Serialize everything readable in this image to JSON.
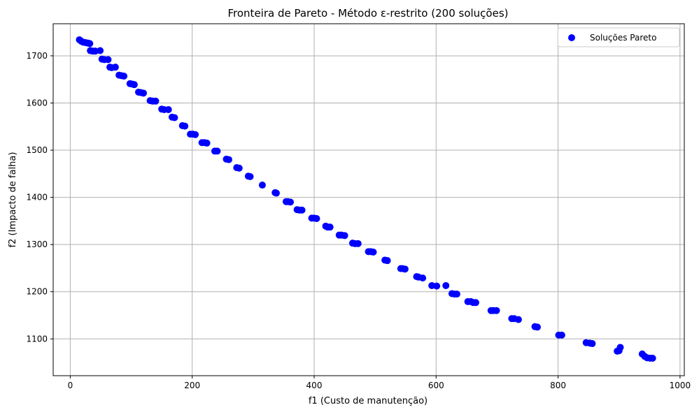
{
  "chart_data": {
    "type": "scatter",
    "title": "Fronteira de Pareto - Método ε-restrito (200 soluções)",
    "xlabel": "f1 (Custo de manutenção)",
    "ylabel": "f2 (Impacto de falha)",
    "xlim": [
      -28,
      1007
    ],
    "ylim": [
      1022,
      1768
    ],
    "xticks": [
      0,
      200,
      400,
      600,
      800,
      1000
    ],
    "yticks": [
      1100,
      1200,
      1300,
      1400,
      1500,
      1600,
      1700
    ],
    "grid": true,
    "legend_position": "top-right",
    "colors": {
      "points": "#0000ff",
      "grid": "#b0b0b0",
      "axis": "#000000"
    },
    "series": [
      {
        "name": "Soluções Pareto",
        "points": [
          [
            15,
            1734
          ],
          [
            18,
            1731
          ],
          [
            21,
            1729
          ],
          [
            25,
            1728
          ],
          [
            29,
            1727
          ],
          [
            32,
            1726
          ],
          [
            33,
            1711
          ],
          [
            37,
            1710
          ],
          [
            41,
            1710
          ],
          [
            49,
            1711
          ],
          [
            52,
            1693
          ],
          [
            56,
            1692
          ],
          [
            62,
            1692
          ],
          [
            65,
            1676
          ],
          [
            68,
            1675
          ],
          [
            74,
            1676
          ],
          [
            80,
            1659
          ],
          [
            84,
            1658
          ],
          [
            88,
            1657
          ],
          [
            98,
            1641
          ],
          [
            102,
            1640
          ],
          [
            105,
            1639
          ],
          [
            112,
            1623
          ],
          [
            116,
            1622
          ],
          [
            120,
            1621
          ],
          [
            131,
            1605
          ],
          [
            135,
            1604
          ],
          [
            140,
            1604
          ],
          [
            150,
            1587
          ],
          [
            154,
            1586
          ],
          [
            161,
            1586
          ],
          [
            167,
            1570
          ],
          [
            171,
            1569
          ],
          [
            184,
            1552
          ],
          [
            188,
            1551
          ],
          [
            197,
            1534
          ],
          [
            201,
            1534
          ],
          [
            205,
            1533
          ],
          [
            216,
            1516
          ],
          [
            220,
            1516
          ],
          [
            224,
            1515
          ],
          [
            237,
            1498
          ],
          [
            241,
            1498
          ],
          [
            256,
            1481
          ],
          [
            260,
            1480
          ],
          [
            273,
            1463
          ],
          [
            277,
            1462
          ],
          [
            292,
            1445
          ],
          [
            295,
            1444
          ],
          [
            315,
            1426
          ],
          [
            336,
            1410
          ],
          [
            338,
            1409
          ],
          [
            354,
            1391
          ],
          [
            357,
            1391
          ],
          [
            361,
            1390
          ],
          [
            372,
            1374
          ],
          [
            376,
            1373
          ],
          [
            380,
            1373
          ],
          [
            396,
            1356
          ],
          [
            400,
            1356
          ],
          [
            404,
            1355
          ],
          [
            419,
            1339
          ],
          [
            422,
            1337
          ],
          [
            426,
            1337
          ],
          [
            441,
            1320
          ],
          [
            445,
            1320
          ],
          [
            450,
            1319
          ],
          [
            463,
            1303
          ],
          [
            467,
            1302
          ],
          [
            472,
            1302
          ],
          [
            489,
            1285
          ],
          [
            493,
            1285
          ],
          [
            497,
            1284
          ],
          [
            516,
            1267
          ],
          [
            520,
            1266
          ],
          [
            542,
            1249
          ],
          [
            545,
            1249
          ],
          [
            549,
            1248
          ],
          [
            568,
            1232
          ],
          [
            571,
            1231
          ],
          [
            578,
            1229
          ],
          [
            593,
            1213
          ],
          [
            601,
            1212
          ],
          [
            616,
            1213
          ],
          [
            626,
            1196
          ],
          [
            630,
            1195
          ],
          [
            634,
            1195
          ],
          [
            652,
            1179
          ],
          [
            657,
            1179
          ],
          [
            661,
            1177
          ],
          [
            665,
            1177
          ],
          [
            690,
            1160
          ],
          [
            694,
            1160
          ],
          [
            699,
            1160
          ],
          [
            724,
            1143
          ],
          [
            728,
            1143
          ],
          [
            735,
            1141
          ],
          [
            762,
            1126
          ],
          [
            766,
            1125
          ],
          [
            801,
            1108
          ],
          [
            806,
            1108
          ],
          [
            846,
            1092
          ],
          [
            852,
            1091
          ],
          [
            856,
            1090
          ],
          [
            897,
            1074
          ],
          [
            900,
            1075
          ],
          [
            902,
            1082
          ],
          [
            938,
            1068
          ],
          [
            942,
            1063
          ],
          [
            946,
            1060
          ],
          [
            951,
            1059
          ],
          [
            955,
            1059
          ]
        ]
      }
    ]
  }
}
